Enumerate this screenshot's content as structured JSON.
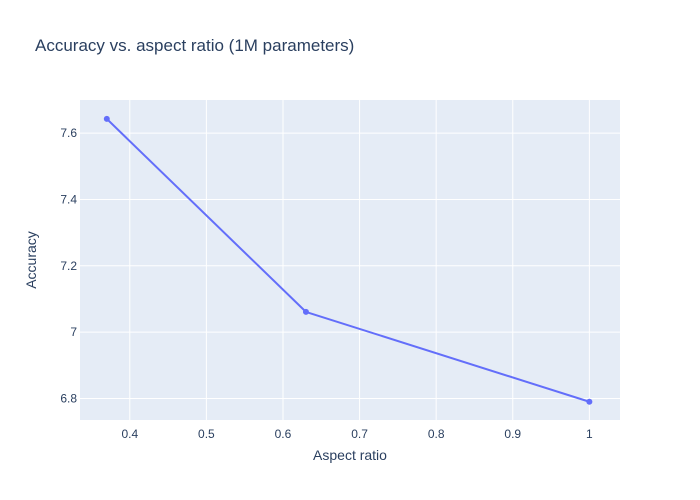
{
  "chart_data": {
    "type": "line",
    "title": "Accuracy vs. aspect ratio (1M parameters)",
    "xlabel": "Aspect ratio",
    "ylabel": "Accuracy",
    "x_tick_labels": [
      "0.4",
      "0.5",
      "0.6",
      "0.7",
      "0.8",
      "0.9",
      "1"
    ],
    "y_tick_labels": [
      "6.8",
      "7",
      "7.2",
      "7.4",
      "7.6"
    ],
    "xlim": [
      0.335,
      1.04
    ],
    "ylim": [
      6.735,
      7.7
    ],
    "grid": true,
    "series": [
      {
        "x": [
          0.37,
          0.63,
          1.0
        ],
        "y": [
          7.643,
          7.061,
          6.79
        ],
        "color": "#636efa",
        "mode": "lines+markers"
      }
    ],
    "plot_background": "#e5ecf6",
    "grid_color": "#ffffff",
    "text_color": "#2a3f5f"
  }
}
